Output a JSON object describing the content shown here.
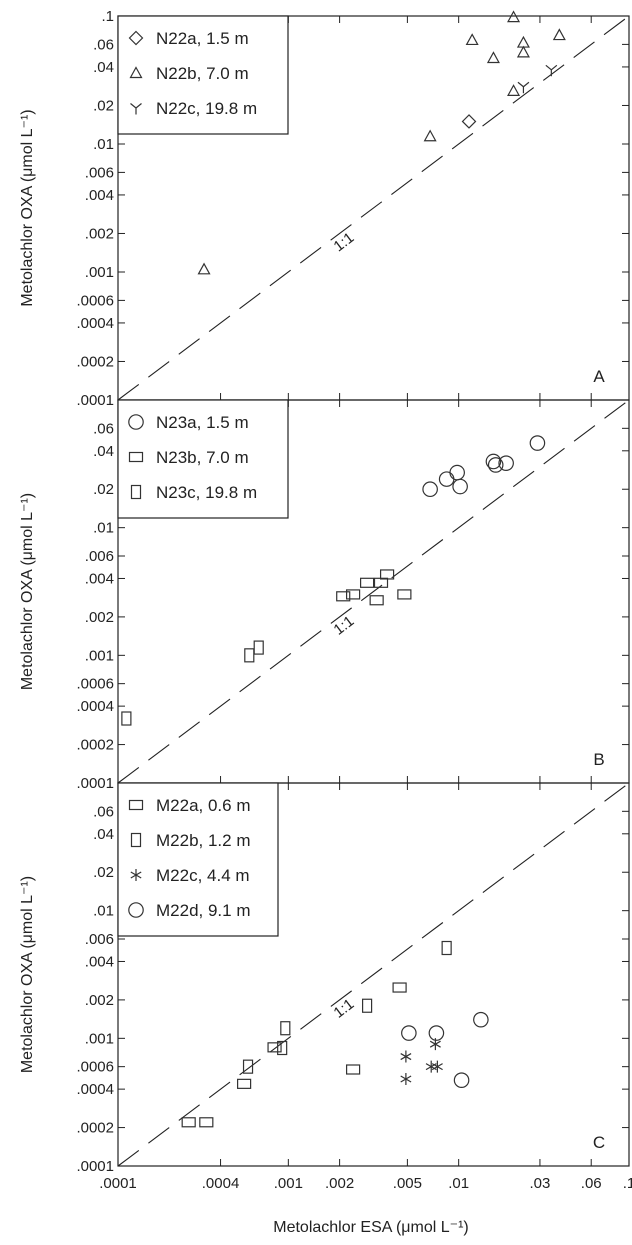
{
  "chart_data": [
    {
      "type": "scatter",
      "panel_label": "A",
      "ylabel": "Metolachlor OXA (μmol L⁻¹)",
      "xscale": "log",
      "yscale": "log",
      "xlim": [
        0.0001,
        0.1
      ],
      "ylim": [
        0.0001,
        0.1
      ],
      "ytick_labels": [
        ".0001",
        ".0002",
        ".0004",
        ".0006",
        ".001",
        ".002",
        ".004",
        ".006",
        ".01",
        ".02",
        ".04",
        ".06",
        ".1"
      ],
      "reference_line": {
        "label": "1:1",
        "slope": 1
      },
      "legend_placement": "top-left",
      "series": [
        {
          "name": "N22a,  1.5 m",
          "marker": "diamond",
          "points": [
            [
              0.0115,
              0.015
            ]
          ]
        },
        {
          "name": "N22b,  7.0 m",
          "marker": "triangle",
          "points": [
            [
              0.00032,
              0.00105
            ],
            [
              0.0068,
              0.0115
            ],
            [
              0.012,
              0.065
            ],
            [
              0.016,
              0.047
            ],
            [
              0.021,
              0.098
            ],
            [
              0.021,
              0.026
            ],
            [
              0.024,
              0.062
            ],
            [
              0.024,
              0.052
            ],
            [
              0.039,
              0.071
            ]
          ]
        },
        {
          "name": "N22c, 19.8 m",
          "marker": "tri-y",
          "points": [
            [
              0.024,
              0.028
            ],
            [
              0.035,
              0.038
            ]
          ]
        }
      ]
    },
    {
      "type": "scatter",
      "panel_label": "B",
      "ylabel": "Metolachlor OXA (μmol L⁻¹)",
      "xscale": "log",
      "yscale": "log",
      "xlim": [
        0.0001,
        0.1
      ],
      "ylim": [
        0.0001,
        0.1
      ],
      "ytick_labels": [
        ".0001",
        ".0002",
        ".0004",
        ".0006",
        ".001",
        ".002",
        ".004",
        ".006",
        ".01",
        ".02",
        ".04",
        ".06"
      ],
      "reference_line": {
        "label": "1:1",
        "slope": 1
      },
      "legend_placement": "top-left",
      "series": [
        {
          "name": "N23a,  1.5 m",
          "marker": "circle",
          "points": [
            [
              0.0068,
              0.02
            ],
            [
              0.0085,
              0.024
            ],
            [
              0.0098,
              0.027
            ],
            [
              0.0102,
              0.021
            ],
            [
              0.016,
              0.033
            ],
            [
              0.0165,
              0.031
            ],
            [
              0.019,
              0.032
            ],
            [
              0.029,
              0.046
            ]
          ]
        },
        {
          "name": "N23b,  7.0 m",
          "marker": "square-wide",
          "points": [
            [
              0.0021,
              0.0029
            ],
            [
              0.0024,
              0.003
            ],
            [
              0.0029,
              0.0037
            ],
            [
              0.0033,
              0.0027
            ],
            [
              0.0035,
              0.0037
            ],
            [
              0.0038,
              0.0043
            ],
            [
              0.0048,
              0.003
            ]
          ]
        },
        {
          "name": "N23c, 19.8 m",
          "marker": "square-tall",
          "points": [
            [
              0.000112,
              0.00032
            ],
            [
              0.00059,
              0.001
            ],
            [
              0.00067,
              0.00115
            ]
          ]
        }
      ]
    },
    {
      "type": "scatter",
      "panel_label": "C",
      "xlabel": "Metolachlor ESA (μmol L⁻¹)",
      "ylabel": "Metolachlor OXA (μmol L⁻¹)",
      "xscale": "log",
      "yscale": "log",
      "xlim": [
        0.0001,
        0.1
      ],
      "ylim": [
        0.0001,
        0.1
      ],
      "xtick_labels": [
        ".0001",
        ".0004",
        ".001",
        ".002",
        ".005",
        ".01",
        ".03",
        ".06",
        ".1"
      ],
      "ytick_labels": [
        ".0001",
        ".0002",
        ".0004",
        ".0006",
        ".001",
        ".002",
        ".004",
        ".006",
        ".01",
        ".02",
        ".04",
        ".06"
      ],
      "reference_line": {
        "label": "1:1",
        "slope": 1
      },
      "legend_placement": "top-left",
      "series": [
        {
          "name": "M22a, 0.6 m",
          "marker": "square-wide",
          "points": [
            [
              0.00026,
              0.00022
            ],
            [
              0.00033,
              0.00022
            ],
            [
              0.00055,
              0.00044
            ],
            [
              0.00083,
              0.00085
            ],
            [
              0.0024,
              0.00057
            ],
            [
              0.0045,
              0.0025
            ]
          ]
        },
        {
          "name": "M22b, 1.2 m",
          "marker": "square-tall",
          "points": [
            [
              0.00058,
              0.0006
            ],
            [
              0.00092,
              0.00084
            ],
            [
              0.00096,
              0.0012
            ],
            [
              0.0029,
              0.0018
            ],
            [
              0.0085,
              0.0051
            ]
          ]
        },
        {
          "name": "M22c, 4.4 m",
          "marker": "asterisk",
          "points": [
            [
              0.0049,
              0.00072
            ],
            [
              0.0049,
              0.00048
            ],
            [
              0.0069,
              0.0006
            ],
            [
              0.0073,
              0.0009
            ],
            [
              0.0075,
              0.0006
            ]
          ]
        },
        {
          "name": "M22d, 9.1 m",
          "marker": "circle",
          "points": [
            [
              0.0051,
              0.0011
            ],
            [
              0.0074,
              0.0011
            ],
            [
              0.0104,
              0.00047
            ],
            [
              0.0135,
              0.0014
            ]
          ]
        }
      ]
    }
  ]
}
